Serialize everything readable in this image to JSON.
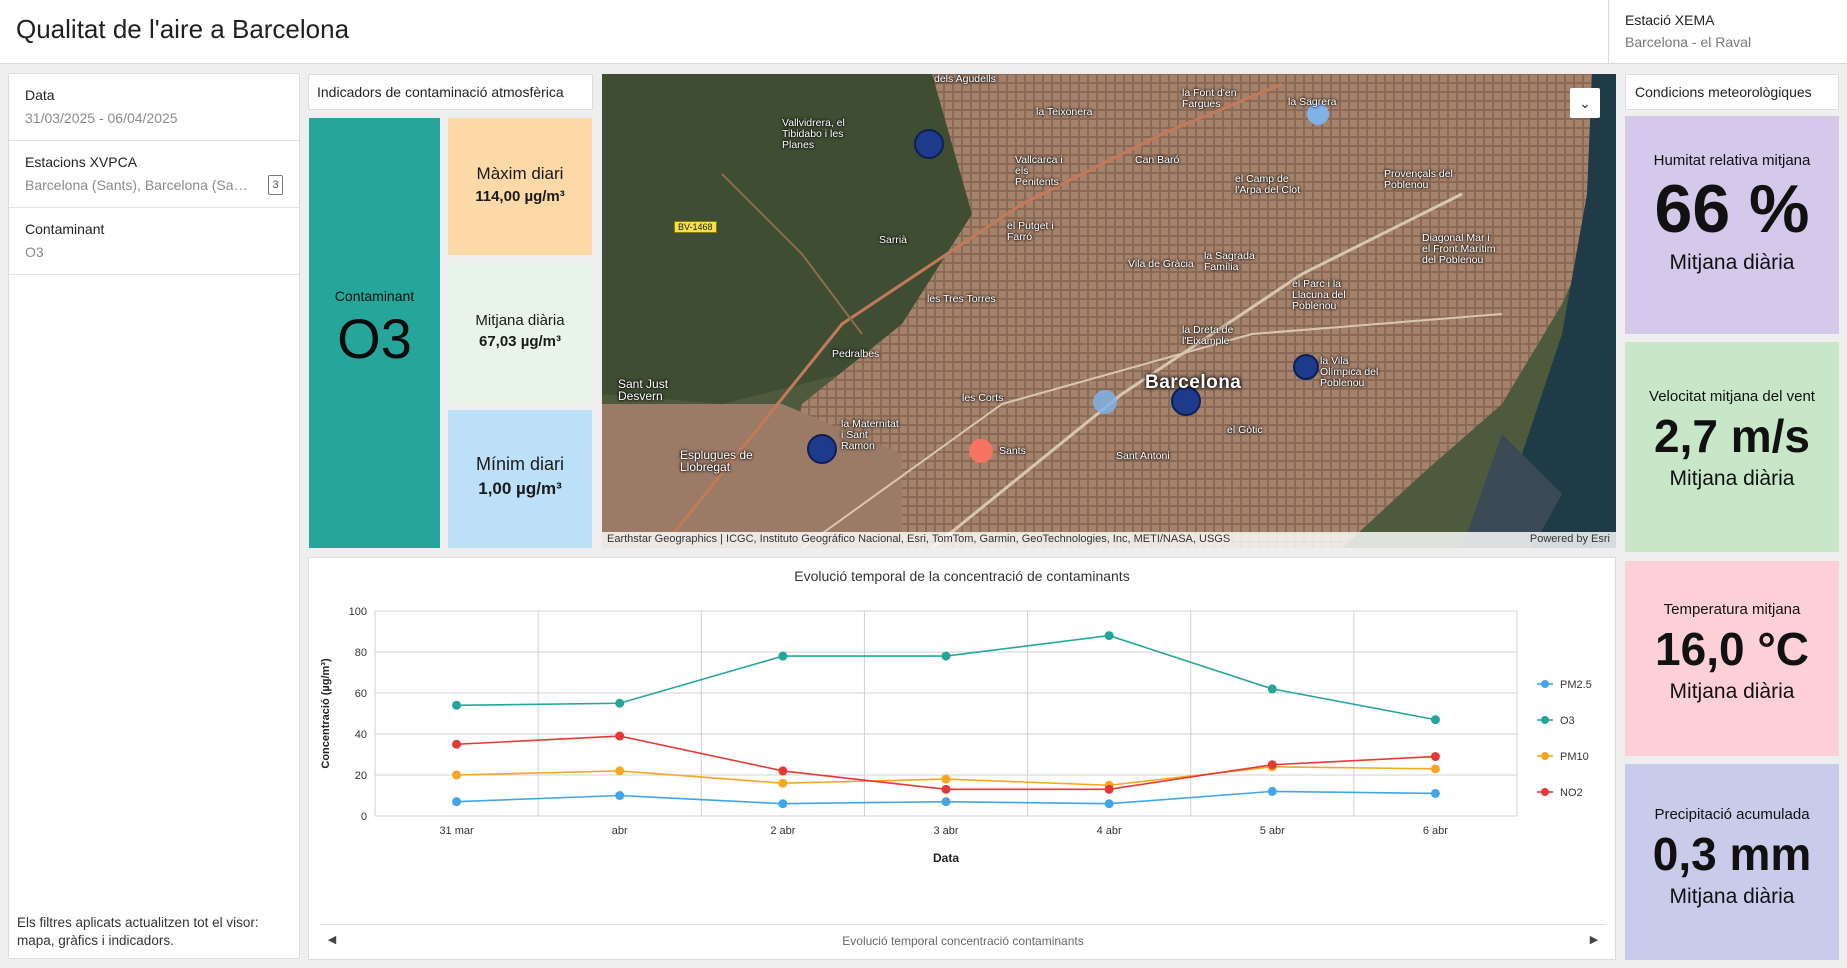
{
  "header": {
    "title": "Qualitat de l'aire a Barcelona",
    "station_label": "Estació XEMA",
    "station_value": "Barcelona - el Raval"
  },
  "filters": {
    "items": [
      {
        "label": "Data",
        "value": "31/03/2025 - 06/04/2025"
      },
      {
        "label": "Estacions XVPCA",
        "value": "Barcelona (Sants), Barcelona (Sagrera)...",
        "count": "3"
      },
      {
        "label": "Contaminant",
        "value": "O3"
      }
    ],
    "note": "Els filtres aplicats actualitzen tot el visor: mapa, gràfics i indicadors."
  },
  "indicators": {
    "title": "Indicadors de contaminació atmosfèrica",
    "pollutant_caption": "Contaminant",
    "pollutant": "O3",
    "max_label": "Màxim diari",
    "max_value": "114,00 µg/m³",
    "mean_label": "Mitjana diària",
    "mean_value": "67,03 µg/m³",
    "min_label": "Mínim diari",
    "min_value": "1,00 µg/m³",
    "colors": {
      "pollutant": "#26a69a",
      "max": "#fdd9a8",
      "mean": "#e7f4e7",
      "min": "#bde0f9"
    }
  },
  "map": {
    "attribution": "Earthstar Geographics | ICGC, Instituto Geográfico Nacional, Esri, TomTom, Garmin, GeoTechnologies, Inc, METI/NASA, USGS",
    "powered_by": "Powered by Esri",
    "city_label": "Barcelona",
    "road_label": "BV-1468",
    "toggle_icon": "chevron-double-down-icon",
    "labels": [
      "dels Agudells",
      "la Teixonera",
      "la Font d'en Fargues",
      "la Sagrera",
      "Vallvidrera, el Tibidabo i les Planes",
      "Vallcarca i els Penitents",
      "Can Baró",
      "el Camp de l'Arpa del Clot",
      "Provençals del Poblenou",
      "el Putget i Farró",
      "Sarrià",
      "Vila de Gràcia",
      "la Sagrada Família",
      "Diagonal Mar i el Front Marítim del Poblenou",
      "les Tres Torres",
      "el Parc i la Llacuna del Poblenou",
      "Pedralbes",
      "la Dreta de l'Eixample",
      "Sant Just Desvern",
      "la Vila Olímpica del Poblenou",
      "les Corts",
      "la Maternitat i Sant Ramon",
      "Sants",
      "el Gòtic",
      "Esplugues de Llobregat",
      "Sant Antoni"
    ]
  },
  "chart": {
    "nav_label": "Evolució temporal concentració contaminants"
  },
  "chart_data": {
    "type": "line",
    "title": "Evolució temporal de la concentració de contaminants",
    "xlabel": "Data",
    "ylabel": "Concentració (µg/m³)",
    "ylim": [
      0,
      100
    ],
    "yticks": [
      "0",
      "20",
      "40",
      "60",
      "80",
      "100"
    ],
    "categories": [
      "31 mar",
      "abr",
      "2 abr",
      "3 abr",
      "4 abr",
      "5 abr",
      "6 abr"
    ],
    "grid": true,
    "legend": "right",
    "series": [
      {
        "name": "PM2.5",
        "color": "#42a5e8",
        "values": [
          7,
          10,
          6,
          7,
          6,
          12,
          11
        ]
      },
      {
        "name": "O3",
        "color": "#26a69a",
        "values": [
          54,
          55,
          78,
          78,
          88,
          62,
          47
        ]
      },
      {
        "name": "PM10",
        "color": "#f5a623",
        "values": [
          20,
          22,
          16,
          18,
          15,
          24,
          23
        ]
      },
      {
        "name": "NO2",
        "color": "#e53935",
        "values": [
          35,
          39,
          22,
          13,
          13,
          25,
          29
        ]
      }
    ]
  },
  "weather": {
    "title": "Condicions meteorològiques",
    "cards": [
      {
        "label": "Humitat relativa mitjana",
        "value": "66 %",
        "sub": "Mitjana diària",
        "color": "#d4c9ea"
      },
      {
        "label": "Velocitat mitjana del vent",
        "value": "2,7 m/s",
        "sub": "Mitjana diària",
        "color": "#c8e6c8"
      },
      {
        "label": "Temperatura mitjana",
        "value": "16,0 °C",
        "sub": "Mitjana diària",
        "color": "#fdd0d8"
      },
      {
        "label": "Precipitació acumulada",
        "value": "0,3 mm",
        "sub": "Mitjana diària",
        "color": "#c9cbeb"
      }
    ]
  }
}
